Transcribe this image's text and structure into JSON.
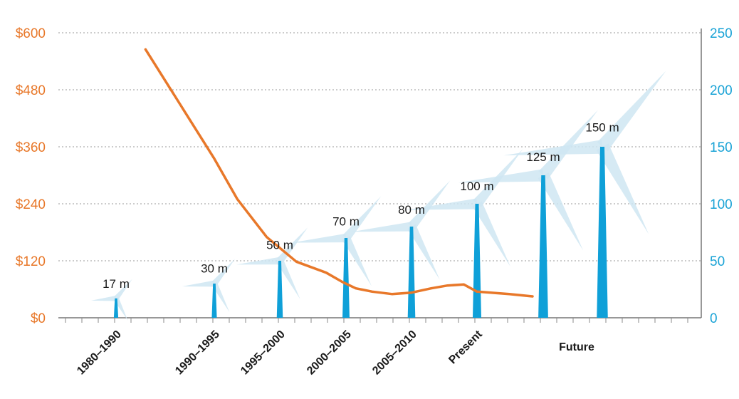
{
  "chart_data": {
    "type": "line",
    "left_axis": {
      "ticks": [
        "$0",
        "$120",
        "$240",
        "$360",
        "$480",
        "$600"
      ],
      "ylim": [
        0,
        600
      ],
      "color": "#e8782a"
    },
    "right_axis": {
      "ticks": [
        "0",
        "50",
        "100",
        "150",
        "200",
        "250"
      ],
      "ylim": [
        0,
        250
      ],
      "color": "#1aa3d6"
    },
    "categories": [
      "1980–1990",
      "1990–1995",
      "1995–2000",
      "2000–2005",
      "2005–2010",
      "Present",
      "Future"
    ],
    "turbines": [
      {
        "category": "1980–1990",
        "height": 17,
        "label": "17 m"
      },
      {
        "category": "1990–1995",
        "height": 30,
        "label": "30 m"
      },
      {
        "category": "1995–2000",
        "height": 50,
        "label": "50 m"
      },
      {
        "category": "2000–2005",
        "height": 70,
        "label": "70 m"
      },
      {
        "category": "2005–2010",
        "height": 80,
        "label": "80 m"
      },
      {
        "category": "Present",
        "height": 100,
        "label": "100 m"
      },
      {
        "category": "Future",
        "height": 125,
        "label": "125 m"
      },
      {
        "category": "Future",
        "height": 150,
        "label": "150 m"
      }
    ],
    "series": [
      {
        "color": "#e8782a",
        "x": [
          0.3,
          0.65,
          1.0,
          1.35,
          1.8,
          2.25,
          2.7,
          2.95,
          3.15,
          3.4,
          3.7,
          4.0,
          4.3,
          4.55,
          4.8,
          5.0,
          5.35,
          5.6
        ],
        "y": [
          565,
          450,
          335,
          250,
          170,
          118,
          95,
          75,
          62,
          55,
          50,
          53,
          62,
          68,
          70,
          55,
          50,
          45
        ]
      }
    ],
    "grid": true
  }
}
